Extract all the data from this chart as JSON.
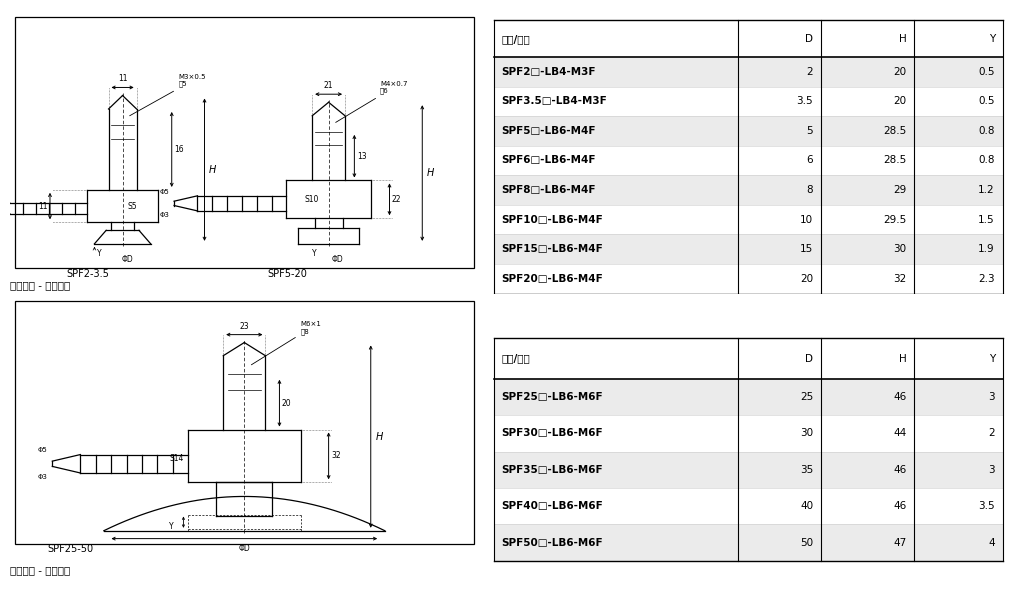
{
  "table1_header": [
    "型号/尺寸",
    "D",
    "H",
    "Y"
  ],
  "table1_rows": [
    [
      "SPF2□-LB4-M3F",
      "2",
      "20",
      "0.5"
    ],
    [
      "SPF3.5□-LB4-M3F",
      "3.5",
      "20",
      "0.5"
    ],
    [
      "SPF5□-LB6-M4F",
      "5",
      "28.5",
      "0.8"
    ],
    [
      "SPF6□-LB6-M4F",
      "6",
      "28.5",
      "0.8"
    ],
    [
      "SPF8□-LB6-M4F",
      "8",
      "29",
      "1.2"
    ],
    [
      "SPF10□-LB6-M4F",
      "10",
      "29.5",
      "1.5"
    ],
    [
      "SPF15□-LB6-M4F",
      "15",
      "30",
      "1.9"
    ],
    [
      "SPF20□-LB6-M4F",
      "20",
      "32",
      "2.3"
    ]
  ],
  "table2_header": [
    "型号/尺寸",
    "D",
    "H",
    "Y"
  ],
  "table2_rows": [
    [
      "SPF25□-LB6-M6F",
      "25",
      "46",
      "3"
    ],
    [
      "SPF30□-LB6-M6F",
      "30",
      "44",
      "2"
    ],
    [
      "SPF35□-LB6-M6F",
      "35",
      "46",
      "3"
    ],
    [
      "SPF40□-LB6-M6F",
      "40",
      "46",
      "3.5"
    ],
    [
      "SPF50□-LB6-M6F",
      "50",
      "47",
      "4"
    ]
  ],
  "label_spf2_35": "SPF2-3.5",
  "label_spf5_20": "SPF5-20",
  "label_spf25_50": "SPF25-50",
  "caption1": "水平方向 - 宝塔接头",
  "caption2": "水平方向 - 宝塔接头",
  "bg_color": "#ffffff",
  "line_color": "#000000",
  "gray_row": "#ebebeb",
  "white_row": "#ffffff"
}
